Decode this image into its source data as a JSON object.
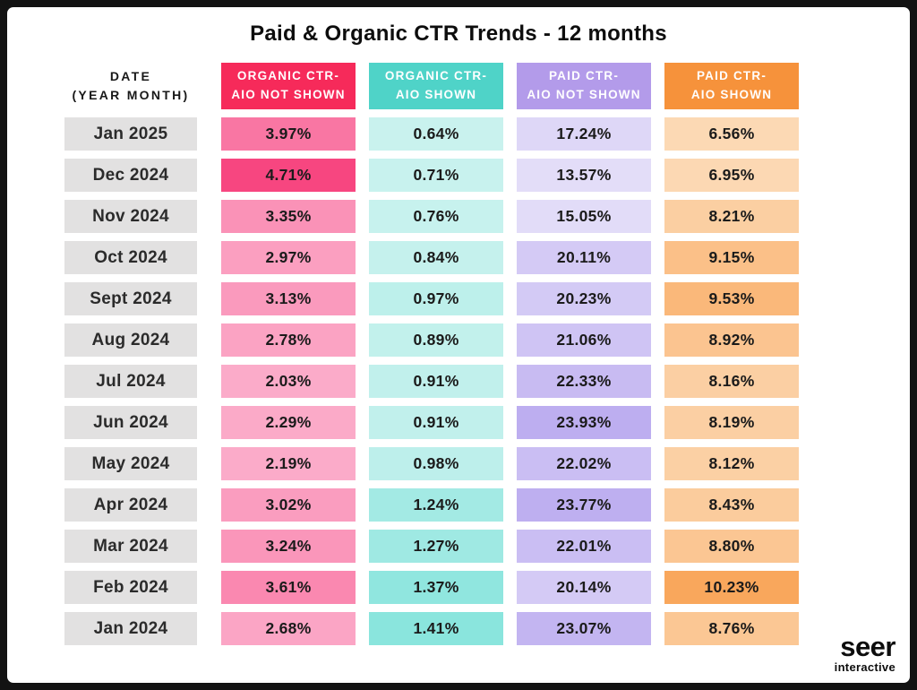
{
  "title": "Paid & Organic CTR Trends - 12 months",
  "date_column": {
    "header_line1": "DATE",
    "header_line2": "(YEAR MONTH)"
  },
  "columns": [
    {
      "id": "organic-ctr-aio-not-shown",
      "label_line1": "ORGANIC CTR-",
      "label_line2": "AIO NOT SHOWN",
      "header_bg": "#F62A5A",
      "scale_light": "#FBABC9",
      "scale_dark": "#F74680",
      "min": 2.03,
      "max": 4.71
    },
    {
      "id": "organic-ctr-aio-shown",
      "label_line1": "ORGANIC CTR-",
      "label_line2": "AIO SHOWN",
      "header_bg": "#4FD3C8",
      "scale_light": "#C9F2EE",
      "scale_dark": "#8AE5DD",
      "min": 0.64,
      "max": 1.41
    },
    {
      "id": "paid-ctr-aio-not-shown",
      "label_line1": "PAID CTR-",
      "label_line2": "AIO NOT SHOWN",
      "header_bg": "#B39BEA",
      "scale_light": "#E3DDF8",
      "scale_dark": "#BDAEF0",
      "min": 13.57,
      "max": 23.93
    },
    {
      "id": "paid-ctr-aio-shown",
      "label_line1": "PAID CTR-",
      "label_line2": "AIO SHOWN",
      "header_bg": "#F6923B",
      "scale_light": "#FCD9B4",
      "scale_dark": "#F9A75C",
      "min": 6.56,
      "max": 10.23
    }
  ],
  "rows": [
    {
      "date": "Jan 2025",
      "values": [
        3.97,
        0.64,
        17.24,
        6.56
      ]
    },
    {
      "date": "Dec 2024",
      "values": [
        4.71,
        0.71,
        13.57,
        6.95
      ]
    },
    {
      "date": "Nov 2024",
      "values": [
        3.35,
        0.76,
        15.05,
        8.21
      ]
    },
    {
      "date": "Oct 2024",
      "values": [
        2.97,
        0.84,
        20.11,
        9.15
      ]
    },
    {
      "date": "Sept 2024",
      "values": [
        3.13,
        0.97,
        20.23,
        9.53
      ]
    },
    {
      "date": "Aug 2024",
      "values": [
        2.78,
        0.89,
        21.06,
        8.92
      ]
    },
    {
      "date": "Jul 2024",
      "values": [
        2.03,
        0.91,
        22.33,
        8.16
      ]
    },
    {
      "date": "Jun 2024",
      "values": [
        2.29,
        0.91,
        23.93,
        8.19
      ]
    },
    {
      "date": "May 2024",
      "values": [
        2.19,
        0.98,
        22.02,
        8.12
      ]
    },
    {
      "date": "Apr 2024",
      "values": [
        3.02,
        1.24,
        23.77,
        8.43
      ]
    },
    {
      "date": "Mar 2024",
      "values": [
        3.24,
        1.27,
        22.01,
        8.8
      ]
    },
    {
      "date": "Feb 2024",
      "values": [
        3.61,
        1.37,
        20.14,
        10.23
      ]
    },
    {
      "date": "Jan 2024",
      "values": [
        2.68,
        1.41,
        23.07,
        8.76
      ]
    }
  ],
  "logo": {
    "brand": "seer",
    "sub": "interactive"
  },
  "chart_data": {
    "type": "heatmap",
    "title": "Paid & Organic CTR Trends - 12 months",
    "categories": [
      "Jan 2025",
      "Dec 2024",
      "Nov 2024",
      "Oct 2024",
      "Sept 2024",
      "Aug 2024",
      "Jul 2024",
      "Jun 2024",
      "May 2024",
      "Apr 2024",
      "Mar 2024",
      "Feb 2024",
      "Jan 2024"
    ],
    "series": [
      {
        "name": "Organic CTR - AIO Not Shown",
        "values": [
          3.97,
          4.71,
          3.35,
          2.97,
          3.13,
          2.78,
          2.03,
          2.29,
          2.19,
          3.02,
          3.24,
          3.61,
          2.68
        ]
      },
      {
        "name": "Organic CTR - AIO Shown",
        "values": [
          0.64,
          0.71,
          0.76,
          0.84,
          0.97,
          0.89,
          0.91,
          0.91,
          0.98,
          1.24,
          1.27,
          1.37,
          1.41
        ]
      },
      {
        "name": "Paid CTR - AIO Not Shown",
        "values": [
          17.24,
          13.57,
          15.05,
          20.11,
          20.23,
          21.06,
          22.33,
          23.93,
          22.02,
          23.77,
          22.01,
          20.14,
          23.07
        ]
      },
      {
        "name": "Paid CTR - AIO Shown",
        "values": [
          6.56,
          6.95,
          8.21,
          9.15,
          9.53,
          8.92,
          8.16,
          8.19,
          8.12,
          8.43,
          8.8,
          10.23,
          8.76
        ]
      }
    ],
    "value_format": "percent",
    "legend_position": "top",
    "grid": false
  }
}
